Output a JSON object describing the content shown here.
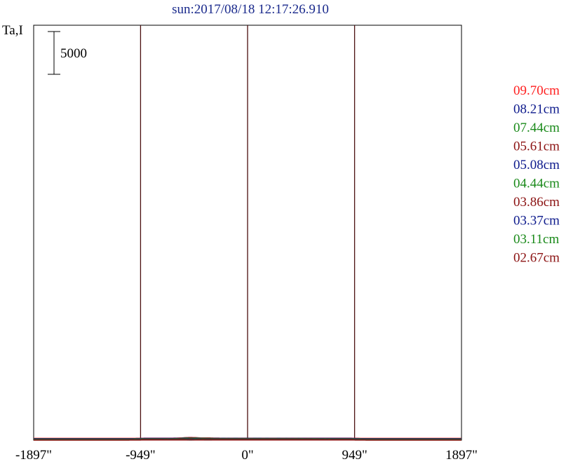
{
  "chart_data": {
    "type": "line",
    "title": "sun:2017/08/18 12:17:26.910",
    "ylabel": "Ta,I",
    "scale_bar_label": "5000",
    "scale_bar_value": 5000,
    "x_ticks": [
      "-1897\"",
      "-949\"",
      "0\"",
      "949\"",
      "1897\""
    ],
    "x_tick_values": [
      -1897,
      -949,
      0,
      949,
      1897
    ],
    "vlines": [
      -949,
      0,
      949
    ],
    "xlim": [
      -1897,
      1897
    ],
    "ylim": [
      0,
      63000
    ],
    "legend_position": "right",
    "colors": {
      "title": "#1a2a8c",
      "frame": "#000000",
      "vline": "#4a0f0f",
      "red": "#ff1f1f",
      "navy": "#0d1a8c",
      "green": "#1a8a1a",
      "maroon": "#8b1212"
    },
    "series": [
      {
        "name": "09.70cm",
        "color_key": "red",
        "baseline": 9,
        "disk": 7.6,
        "limb": 0.4,
        "peak": 20.0,
        "peak_pos": -510,
        "peak_width": 55,
        "secondary": 0.15
      },
      {
        "name": "08.21cm",
        "color_key": "navy",
        "baseline": 8,
        "disk": 7.4,
        "limb": 0.5,
        "peak": 18.6,
        "peak_pos": -510,
        "peak_width": 50,
        "secondary": 0.15
      },
      {
        "name": "07.44cm",
        "color_key": "green",
        "baseline": 7,
        "disk": 7.2,
        "limb": 0.6,
        "peak": 17.6,
        "peak_pos": -505,
        "peak_width": 45,
        "secondary": 0.15
      },
      {
        "name": "05.61cm",
        "color_key": "maroon",
        "baseline": 6,
        "disk": 7.0,
        "limb": 0.7,
        "peak": 13.2,
        "peak_pos": -500,
        "peak_width": 35,
        "secondary": 0.35
      },
      {
        "name": "05.08cm",
        "color_key": "navy",
        "baseline": 5,
        "disk": 6.6,
        "limb": 0.7,
        "peak": 12.4,
        "peak_pos": -500,
        "peak_width": 32,
        "secondary": 0.3
      },
      {
        "name": "04.44cm",
        "color_key": "green",
        "baseline": 4,
        "disk": 6.4,
        "limb": 0.8,
        "peak": 11.6,
        "peak_pos": -500,
        "peak_width": 30,
        "secondary": 0.3
      },
      {
        "name": "03.86cm",
        "color_key": "maroon",
        "baseline": 3,
        "disk": 6.2,
        "limb": 0.9,
        "peak": 10.8,
        "peak_pos": -505,
        "peak_width": 26,
        "secondary": 0.35
      },
      {
        "name": "03.37cm",
        "color_key": "navy",
        "baseline": 2,
        "disk": 6.0,
        "limb": 0.9,
        "peak": 8.9,
        "peak_pos": -505,
        "peak_width": 24,
        "secondary": 0.3
      },
      {
        "name": "03.11cm",
        "color_key": "green",
        "baseline": 1,
        "disk": 5.6,
        "limb": 1.0,
        "peak": 7.2,
        "peak_pos": -505,
        "peak_width": 22,
        "secondary": 0.3
      },
      {
        "name": "02.67cm",
        "color_key": "maroon",
        "baseline": 0,
        "disk": 5.2,
        "limb": 1.0,
        "peak": 5.0,
        "peak_pos": -505,
        "peak_width": 20,
        "secondary": 0.3
      }
    ]
  }
}
